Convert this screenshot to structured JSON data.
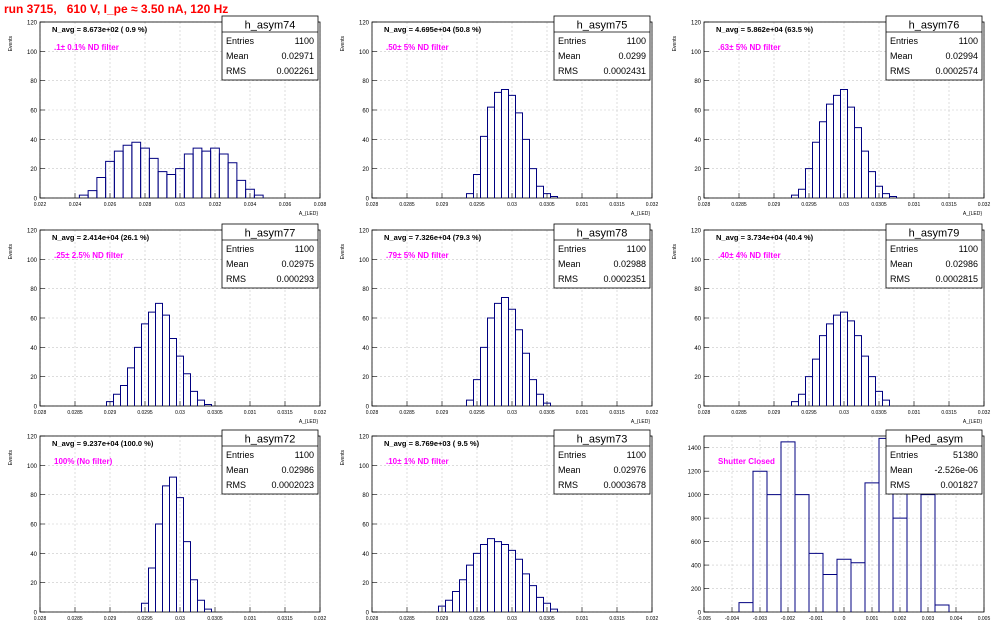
{
  "title": "run 3715,   610 V, I_pe ≈ 3.50 nA, 120 Hz",
  "colors": {
    "title": "#ff0000",
    "annotation": "#ff00ff",
    "histogram": "#000080",
    "grid": "#c8c8c8"
  },
  "stats_labels": {
    "entries": "Entries",
    "mean": "Mean",
    "rms": "RMS"
  },
  "chart_data": [
    {
      "type": "histogram",
      "name": "h_asym74",
      "header": "N_avg = 8.673e+02 ( 0.9 %)",
      "annotation": ".1± 0.1% ND filter",
      "ylabel": "Events",
      "xlabel": "A_{LED}",
      "ylim": [
        0,
        120
      ],
      "xlim": [
        0.022,
        0.038
      ],
      "yticks": [
        "0",
        "20",
        "40",
        "60",
        "80",
        "100",
        "120"
      ],
      "xticks": [
        "0.022",
        "0.024",
        "0.026",
        "0.028",
        "0.03",
        "0.032",
        "0.034",
        "0.036",
        "0.038"
      ],
      "stats": {
        "entries": "1100",
        "mean": "0.02971",
        "rms": "0.002261"
      },
      "x": [
        0.0245,
        0.025,
        0.0255,
        0.026,
        0.0265,
        0.027,
        0.0275,
        0.028,
        0.0285,
        0.029,
        0.0295,
        0.03,
        0.0305,
        0.031,
        0.0315,
        0.032,
        0.0325,
        0.033,
        0.0335,
        0.034,
        0.0345
      ],
      "values": [
        2,
        5,
        14,
        25,
        32,
        36,
        38,
        34,
        27,
        18,
        16,
        20,
        30,
        34,
        32,
        34,
        30,
        24,
        12,
        6,
        2
      ]
    },
    {
      "type": "histogram",
      "name": "h_asym75",
      "header": "N_avg = 4.695e+04 (50.8 %)",
      "annotation": ".50± 5% ND filter",
      "ylabel": "Events",
      "xlabel": "A_{LED}",
      "ylim": [
        0,
        120
      ],
      "xlim": [
        0.028,
        0.032
      ],
      "yticks": [
        "0",
        "20",
        "40",
        "60",
        "80",
        "100",
        "120"
      ],
      "xticks": [
        "0.028",
        "0.0285",
        "0.029",
        "0.0295",
        "0.03",
        "0.0305",
        "0.031",
        "0.0315",
        "0.032"
      ],
      "stats": {
        "entries": "1100",
        "mean": "0.0299",
        "rms": "0.0002431"
      },
      "x": [
        0.0294,
        0.0295,
        0.0296,
        0.0297,
        0.0298,
        0.0299,
        0.03,
        0.0301,
        0.0302,
        0.0303,
        0.0304,
        0.0305,
        0.0306
      ],
      "values": [
        3,
        16,
        42,
        62,
        72,
        74,
        70,
        58,
        40,
        20,
        8,
        3,
        1
      ]
    },
    {
      "type": "histogram",
      "name": "h_asym76",
      "header": "N_avg = 5.862e+04 (63.5 %)",
      "annotation": ".63± 5% ND filter",
      "ylabel": "Events",
      "xlabel": "A_{LED}",
      "ylim": [
        0,
        120
      ],
      "xlim": [
        0.028,
        0.032
      ],
      "yticks": [
        "0",
        "20",
        "40",
        "60",
        "80",
        "100",
        "120"
      ],
      "xticks": [
        "0.028",
        "0.0285",
        "0.029",
        "0.0295",
        "0.03",
        "0.0305",
        "0.031",
        "0.0315",
        "0.032"
      ],
      "stats": {
        "entries": "1100",
        "mean": "0.02994",
        "rms": "0.0002574"
      },
      "x": [
        0.0293,
        0.0294,
        0.0295,
        0.0296,
        0.0297,
        0.0298,
        0.0299,
        0.03,
        0.0301,
        0.0302,
        0.0303,
        0.0304,
        0.0305,
        0.0306,
        0.0307
      ],
      "values": [
        2,
        6,
        20,
        38,
        52,
        64,
        70,
        74,
        62,
        48,
        32,
        18,
        8,
        3,
        1
      ]
    },
    {
      "type": "histogram",
      "name": "h_asym77",
      "header": "N_avg = 2.414e+04 (26.1 %)",
      "annotation": ".25± 2.5% ND filter",
      "ylabel": "Events",
      "xlabel": "A_{LED}",
      "ylim": [
        0,
        120
      ],
      "xlim": [
        0.028,
        0.032
      ],
      "yticks": [
        "0",
        "20",
        "40",
        "60",
        "80",
        "100",
        "120"
      ],
      "xticks": [
        "0.028",
        "0.0285",
        "0.029",
        "0.0295",
        "0.03",
        "0.0305",
        "0.031",
        "0.0315",
        "0.032"
      ],
      "stats": {
        "entries": "1100",
        "mean": "0.02975",
        "rms": "0.000293"
      },
      "x": [
        0.029,
        0.0291,
        0.0292,
        0.0293,
        0.0294,
        0.0295,
        0.0296,
        0.0297,
        0.0298,
        0.0299,
        0.03,
        0.0301,
        0.0302,
        0.0303,
        0.0304
      ],
      "values": [
        3,
        8,
        14,
        26,
        40,
        56,
        64,
        70,
        62,
        46,
        34,
        22,
        10,
        4,
        1
      ]
    },
    {
      "type": "histogram",
      "name": "h_asym78",
      "header": "N_avg = 7.326e+04 (79.3 %)",
      "annotation": ".79± 5% ND filter",
      "ylabel": "Events",
      "xlabel": "A_{LED}",
      "ylim": [
        0,
        120
      ],
      "xlim": [
        0.028,
        0.032
      ],
      "yticks": [
        "0",
        "20",
        "40",
        "60",
        "80",
        "100",
        "120"
      ],
      "xticks": [
        "0.028",
        "0.0285",
        "0.029",
        "0.0295",
        "0.03",
        "0.0305",
        "0.031",
        "0.0315",
        "0.032"
      ],
      "stats": {
        "entries": "1100",
        "mean": "0.02988",
        "rms": "0.0002351"
      },
      "x": [
        0.0294,
        0.0295,
        0.0296,
        0.0297,
        0.0298,
        0.0299,
        0.03,
        0.0301,
        0.0302,
        0.0303,
        0.0304,
        0.0305
      ],
      "values": [
        4,
        18,
        40,
        60,
        70,
        74,
        66,
        52,
        36,
        18,
        8,
        2
      ]
    },
    {
      "type": "histogram",
      "name": "h_asym79",
      "header": "N_avg = 3.734e+04 (40.4 %)",
      "annotation": ".40± 4% ND filter",
      "ylabel": "Events",
      "xlabel": "A_{LED}",
      "ylim": [
        0,
        120
      ],
      "xlim": [
        0.028,
        0.032
      ],
      "yticks": [
        "0",
        "20",
        "40",
        "60",
        "80",
        "100",
        "120"
      ],
      "xticks": [
        "0.028",
        "0.0285",
        "0.029",
        "0.0295",
        "0.03",
        "0.0305",
        "0.031",
        "0.0315",
        "0.032"
      ],
      "stats": {
        "entries": "1100",
        "mean": "0.02986",
        "rms": "0.0002815"
      },
      "x": [
        0.0293,
        0.0294,
        0.0295,
        0.0296,
        0.0297,
        0.0298,
        0.0299,
        0.03,
        0.0301,
        0.0302,
        0.0303,
        0.0304,
        0.0305,
        0.0306
      ],
      "values": [
        3,
        8,
        20,
        32,
        48,
        56,
        62,
        64,
        58,
        48,
        34,
        20,
        10,
        4
      ]
    },
    {
      "type": "histogram",
      "name": "h_asym72",
      "header": "N_avg = 9.237e+04 (100.0 %)",
      "annotation": "100% (No filter)",
      "ylabel": "Events",
      "xlabel": "A_{LED}",
      "ylim": [
        0,
        120
      ],
      "xlim": [
        0.028,
        0.032
      ],
      "yticks": [
        "0",
        "20",
        "40",
        "60",
        "80",
        "100",
        "120"
      ],
      "xticks": [
        "0.028",
        "0.0285",
        "0.029",
        "0.0295",
        "0.03",
        "0.0305",
        "0.031",
        "0.0315",
        "0.032"
      ],
      "stats": {
        "entries": "1100",
        "mean": "0.02986",
        "rms": "0.0002023"
      },
      "x": [
        0.0295,
        0.0296,
        0.0297,
        0.0298,
        0.0299,
        0.03,
        0.0301,
        0.0302,
        0.0303,
        0.0304
      ],
      "values": [
        6,
        30,
        60,
        86,
        92,
        78,
        48,
        22,
        8,
        2
      ]
    },
    {
      "type": "histogram",
      "name": "h_asym73",
      "header": "N_avg = 8.769e+03 ( 9.5 %)",
      "annotation": ".10± 1% ND filter",
      "ylabel": "Events",
      "xlabel": "A_{LED}",
      "ylim": [
        0,
        120
      ],
      "xlim": [
        0.028,
        0.032
      ],
      "yticks": [
        "0",
        "20",
        "40",
        "60",
        "80",
        "100",
        "120"
      ],
      "xticks": [
        "0.028",
        "0.0285",
        "0.029",
        "0.0295",
        "0.03",
        "0.0305",
        "0.031",
        "0.0315",
        "0.032"
      ],
      "stats": {
        "entries": "1100",
        "mean": "0.02976",
        "rms": "0.0003678"
      },
      "x": [
        0.029,
        0.0291,
        0.0292,
        0.0293,
        0.0294,
        0.0295,
        0.0296,
        0.0297,
        0.0298,
        0.0299,
        0.03,
        0.0301,
        0.0302,
        0.0303,
        0.0304,
        0.0305,
        0.0306
      ],
      "values": [
        4,
        8,
        14,
        22,
        32,
        40,
        46,
        50,
        48,
        46,
        42,
        36,
        26,
        18,
        10,
        6,
        2
      ]
    },
    {
      "type": "histogram",
      "name": "hPed_asym",
      "header": "",
      "annotation": "Shutter Closed",
      "ylabel": "",
      "xlabel": "",
      "ylim": [
        0,
        1500
      ],
      "xlim": [
        -0.005,
        0.005
      ],
      "yticks": [
        "0",
        "200",
        "400",
        "600",
        "800",
        "1000",
        "1200",
        "1400"
      ],
      "xticks": [
        "-0.005",
        "-0.004",
        "-0.003",
        "-0.002",
        "-0.001",
        "0",
        "0.001",
        "0.002",
        "0.003",
        "0.004",
        "0.005"
      ],
      "stats": {
        "entries": "51380",
        "mean": "-2.526e-06",
        "rms": "0.001827"
      },
      "x": [
        -0.0035,
        -0.003,
        -0.0025,
        -0.002,
        -0.0015,
        -0.001,
        -0.0005,
        0.0,
        0.0005,
        0.001,
        0.0015,
        0.002,
        0.0025,
        0.003,
        0.0035
      ],
      "values": [
        80,
        1200,
        1000,
        1450,
        1000,
        500,
        320,
        450,
        420,
        1100,
        1480,
        800,
        1300,
        1000,
        60
      ]
    }
  ]
}
